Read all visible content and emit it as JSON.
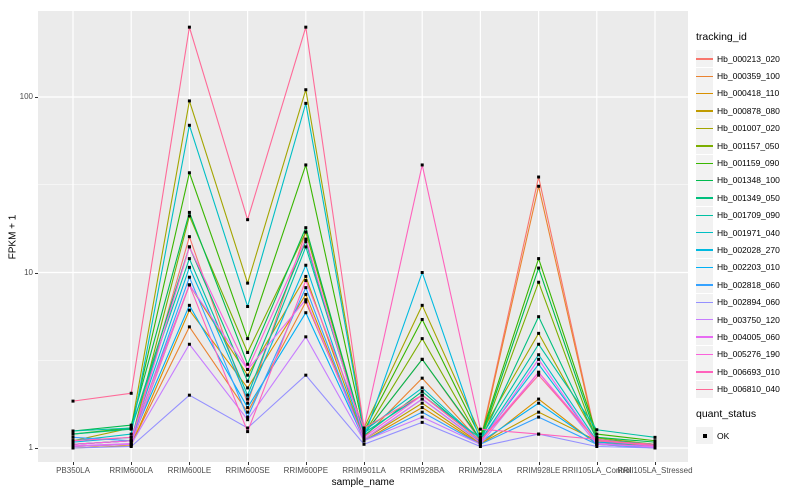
{
  "chart_data": {
    "type": "line",
    "title": "",
    "xlabel": "sample_name",
    "ylabel": "FPKM + 1",
    "y_scale": "log10",
    "ylim": [
      1,
      310
    ],
    "y_ticks": [
      1,
      10,
      100
    ],
    "y_minor_ticks": [
      3.1623,
      31.623,
      316.23
    ],
    "grid": true,
    "legend_position": "right",
    "legend_title": "tracking_id",
    "quant_legend": {
      "title": "quant_status",
      "items": [
        {
          "label": "OK",
          "marker": "black-square"
        }
      ]
    },
    "panel_bg": "#EBEBEB",
    "grid_color": "#FFFFFF",
    "marker_color": "#000000",
    "axis_text_color": "#4D4D4D",
    "categories": [
      "PB350LA",
      "RRIM600LA",
      "RRIM600LE",
      "RRIM600SE",
      "RRIM600PE",
      "RRIM901LA",
      "RRIM928BA",
      "RRIM928LA",
      "RRIM928LE",
      "RRII105LA_Control",
      "RRII105LA_Stressed"
    ],
    "series": [
      {
        "name": "Hb_000213_020",
        "color": "#F8766D",
        "values": [
          1.05,
          1.1,
          16,
          1.8,
          17,
          1.2,
          3.2,
          1.1,
          35,
          1.1,
          1.05
        ]
      },
      {
        "name": "Hb_000359_100",
        "color": "#EA8331",
        "values": [
          1.02,
          1.05,
          4.9,
          1.6,
          6.8,
          1.15,
          2.5,
          1.08,
          31,
          1.08,
          1.02
        ]
      },
      {
        "name": "Hb_000418_110",
        "color": "#D89000",
        "values": [
          1.0,
          1.03,
          6.1,
          2.2,
          7.5,
          1.1,
          1.7,
          1.05,
          1.9,
          1.05,
          1.0
        ]
      },
      {
        "name": "Hb_000878_080",
        "color": "#C09B00",
        "values": [
          1.02,
          1.05,
          8.5,
          2.6,
          9.5,
          1.12,
          1.8,
          1.06,
          1.6,
          1.1,
          1.02
        ]
      },
      {
        "name": "Hb_001007_020",
        "color": "#A3A500",
        "values": [
          1.1,
          1.3,
          95,
          8.7,
          110,
          1.3,
          6.5,
          1.2,
          4.5,
          1.14,
          1.05
        ]
      },
      {
        "name": "Hb_001157_050",
        "color": "#7CAE00",
        "values": [
          1.05,
          1.1,
          21,
          3.5,
          17,
          1.2,
          4.2,
          1.1,
          8.8,
          1.1,
          1.03
        ]
      },
      {
        "name": "Hb_001159_090",
        "color": "#39B600",
        "values": [
          1.2,
          1.3,
          37,
          4.2,
          41,
          1.25,
          5.4,
          1.15,
          12,
          1.2,
          1.1
        ]
      },
      {
        "name": "Hb_001348_100",
        "color": "#00BB4E",
        "values": [
          1.25,
          1.35,
          22,
          3.0,
          18,
          1.2,
          3.2,
          1.12,
          10.6,
          1.15,
          1.08
        ]
      },
      {
        "name": "Hb_001349_050",
        "color": "#00BF7D",
        "values": [
          1.2,
          1.28,
          14,
          2.4,
          15,
          1.18,
          2.1,
          1.1,
          5.6,
          1.12,
          1.05
        ]
      },
      {
        "name": "Hb_001709_090",
        "color": "#00C1A3",
        "values": [
          1.25,
          1.3,
          12,
          2.0,
          14,
          1.22,
          2.0,
          1.14,
          3.9,
          1.27,
          1.15
        ]
      },
      {
        "name": "Hb_001971_040",
        "color": "#00BFC4",
        "values": [
          1.1,
          1.2,
          69,
          6.4,
          92,
          1.25,
          2.2,
          1.1,
          3.4,
          1.1,
          1.05
        ]
      },
      {
        "name": "Hb_002028_270",
        "color": "#00BAE0",
        "values": [
          1.08,
          1.15,
          10.7,
          1.9,
          11,
          1.15,
          10,
          1.1,
          3.0,
          1.08,
          1.04
        ]
      },
      {
        "name": "Hb_002203_010",
        "color": "#00B0F6",
        "values": [
          1.05,
          1.1,
          6.5,
          1.7,
          5.9,
          1.12,
          1.9,
          1.08,
          1.8,
          1.06,
          1.02
        ]
      },
      {
        "name": "Hb_002818_060",
        "color": "#35A2FF",
        "values": [
          1.15,
          1.1,
          9.4,
          1.5,
          8.2,
          1.1,
          1.6,
          1.05,
          1.5,
          1.05,
          1.0
        ]
      },
      {
        "name": "Hb_002894_060",
        "color": "#9590FF",
        "values": [
          1.0,
          1.02,
          2.0,
          1.3,
          2.6,
          1.05,
          1.4,
          1.02,
          1.2,
          1.02,
          1.0
        ]
      },
      {
        "name": "Hb_003750_120",
        "color": "#C77CFF",
        "values": [
          1.02,
          1.05,
          3.9,
          1.45,
          4.3,
          1.1,
          1.5,
          1.05,
          2.7,
          1.05,
          1.02
        ]
      },
      {
        "name": "Hb_004005_060",
        "color": "#E76BF3",
        "values": [
          1.03,
          1.06,
          8.5,
          2.8,
          7.0,
          1.12,
          1.9,
          1.07,
          3.2,
          1.06,
          1.01
        ]
      },
      {
        "name": "Hb_005276_190",
        "color": "#FA62DB",
        "values": [
          1.05,
          1.1,
          14,
          2.8,
          15.5,
          1.15,
          2.0,
          1.1,
          2.7,
          1.1,
          1.03
        ]
      },
      {
        "name": "Hb_006693_010",
        "color": "#FF62BC",
        "values": [
          1.1,
          1.15,
          8.5,
          1.24,
          9.0,
          1.3,
          41,
          1.28,
          1.2,
          1.12,
          1.03
        ]
      },
      {
        "name": "Hb_006810_040",
        "color": "#FF6A98",
        "values": [
          1.85,
          2.05,
          250,
          20,
          250,
          1.3,
          2.0,
          1.1,
          2.6,
          1.1,
          1.05
        ]
      }
    ]
  }
}
